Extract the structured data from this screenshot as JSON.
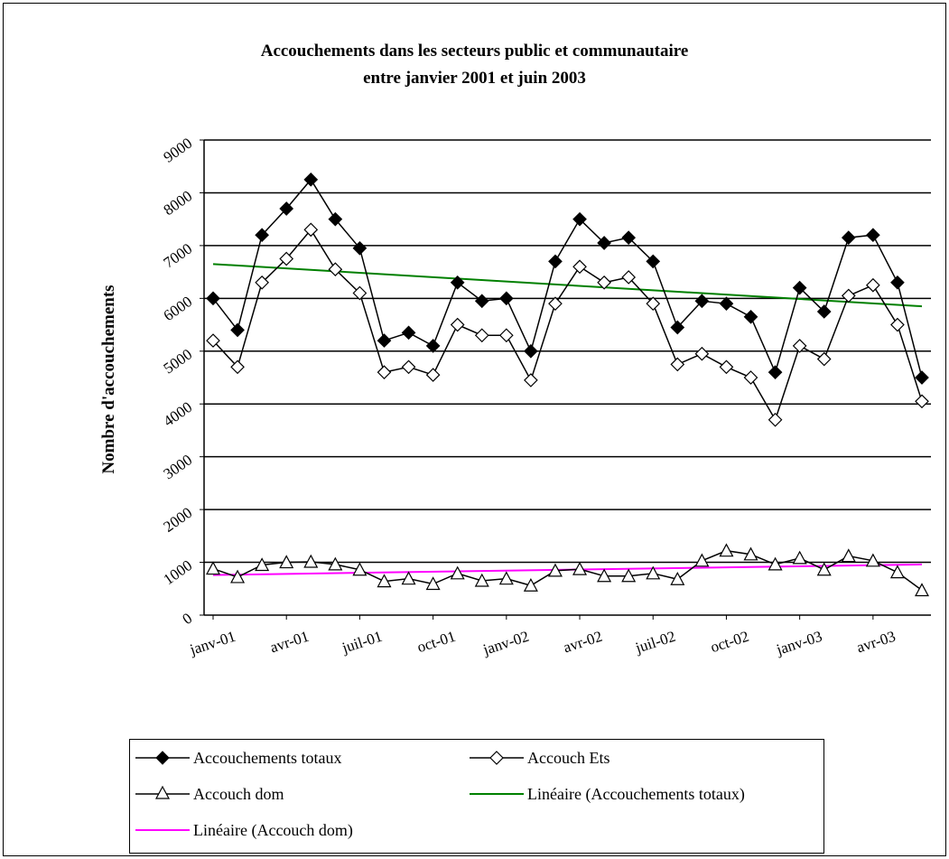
{
  "chart_data": {
    "type": "line",
    "title": "Accouchements dans les secteurs public et communautaire",
    "subtitle": "entre janvier 2001 et juin 2003",
    "xlabel": "",
    "ylabel": "Nombre d'accouchements",
    "ylim": [
      0,
      9000
    ],
    "yticks": [
      "0",
      "1000",
      "2000",
      "3000",
      "4000",
      "5000",
      "6000",
      "7000",
      "8000",
      "9000"
    ],
    "grid": true,
    "legend_position": "bottom",
    "x": [
      "janv-01",
      "févr-01",
      "mars-01",
      "avr-01",
      "mai-01",
      "juin-01",
      "juil-01",
      "août-01",
      "sept-01",
      "oct-01",
      "nov-01",
      "déc-01",
      "janv-02",
      "févr-02",
      "mars-02",
      "avr-02",
      "mai-02",
      "juin-02",
      "juil-02",
      "août-02",
      "sept-02",
      "oct-02",
      "nov-02",
      "déc-02",
      "janv-03",
      "févr-03",
      "mars-03",
      "avr-03",
      "mai-03",
      "juin-03"
    ],
    "x_tick_labels": [
      {
        "index": 0,
        "label": "janv-01"
      },
      {
        "index": 3,
        "label": "avr-01"
      },
      {
        "index": 6,
        "label": "juil-01"
      },
      {
        "index": 9,
        "label": "oct-01"
      },
      {
        "index": 12,
        "label": "janv-02"
      },
      {
        "index": 15,
        "label": "avr-02"
      },
      {
        "index": 18,
        "label": "juil-02"
      },
      {
        "index": 21,
        "label": "oct-02"
      },
      {
        "index": 24,
        "label": "janv-03"
      },
      {
        "index": 27,
        "label": "avr-03"
      }
    ],
    "series": [
      {
        "name": "Accouchements totaux",
        "marker": "diamond-filled",
        "color": "#000000",
        "values": [
          6000,
          5400,
          7200,
          7700,
          8250,
          7500,
          6950,
          5200,
          5350,
          5100,
          6300,
          5950,
          6000,
          5000,
          6700,
          7500,
          7050,
          7150,
          6700,
          5450,
          5950,
          5900,
          5650,
          4600,
          6200,
          5750,
          7150,
          7200,
          6300,
          4500
        ]
      },
      {
        "name": "Accouch Ets",
        "marker": "diamond-open",
        "color": "#000000",
        "values": [
          5200,
          4700,
          6300,
          6750,
          7300,
          6550,
          6100,
          4600,
          4700,
          4550,
          5500,
          5300,
          5300,
          4450,
          5900,
          6600,
          6300,
          6400,
          5900,
          4750,
          4950,
          4700,
          4500,
          3700,
          5100,
          4850,
          6050,
          6250,
          5500,
          4050
        ]
      },
      {
        "name": "Accouch dom",
        "marker": "triangle-open",
        "color": "#000000",
        "values": [
          880,
          720,
          950,
          1000,
          1010,
          960,
          860,
          640,
          690,
          590,
          790,
          650,
          690,
          560,
          840,
          870,
          740,
          740,
          790,
          680,
          1030,
          1220,
          1150,
          960,
          1080,
          860,
          1120,
          1030,
          810,
          470
        ]
      },
      {
        "name": "Linéaire (Accouchements totaux)",
        "marker": "none",
        "color": "#008000",
        "trend_from": [
          0,
          6650
        ],
        "trend_to": [
          29,
          5850
        ]
      },
      {
        "name": "Linéaire (Accouch dom)",
        "marker": "none",
        "color": "#ff00ff",
        "trend_from": [
          0,
          760
        ],
        "trend_to": [
          29,
          960
        ]
      }
    ]
  }
}
